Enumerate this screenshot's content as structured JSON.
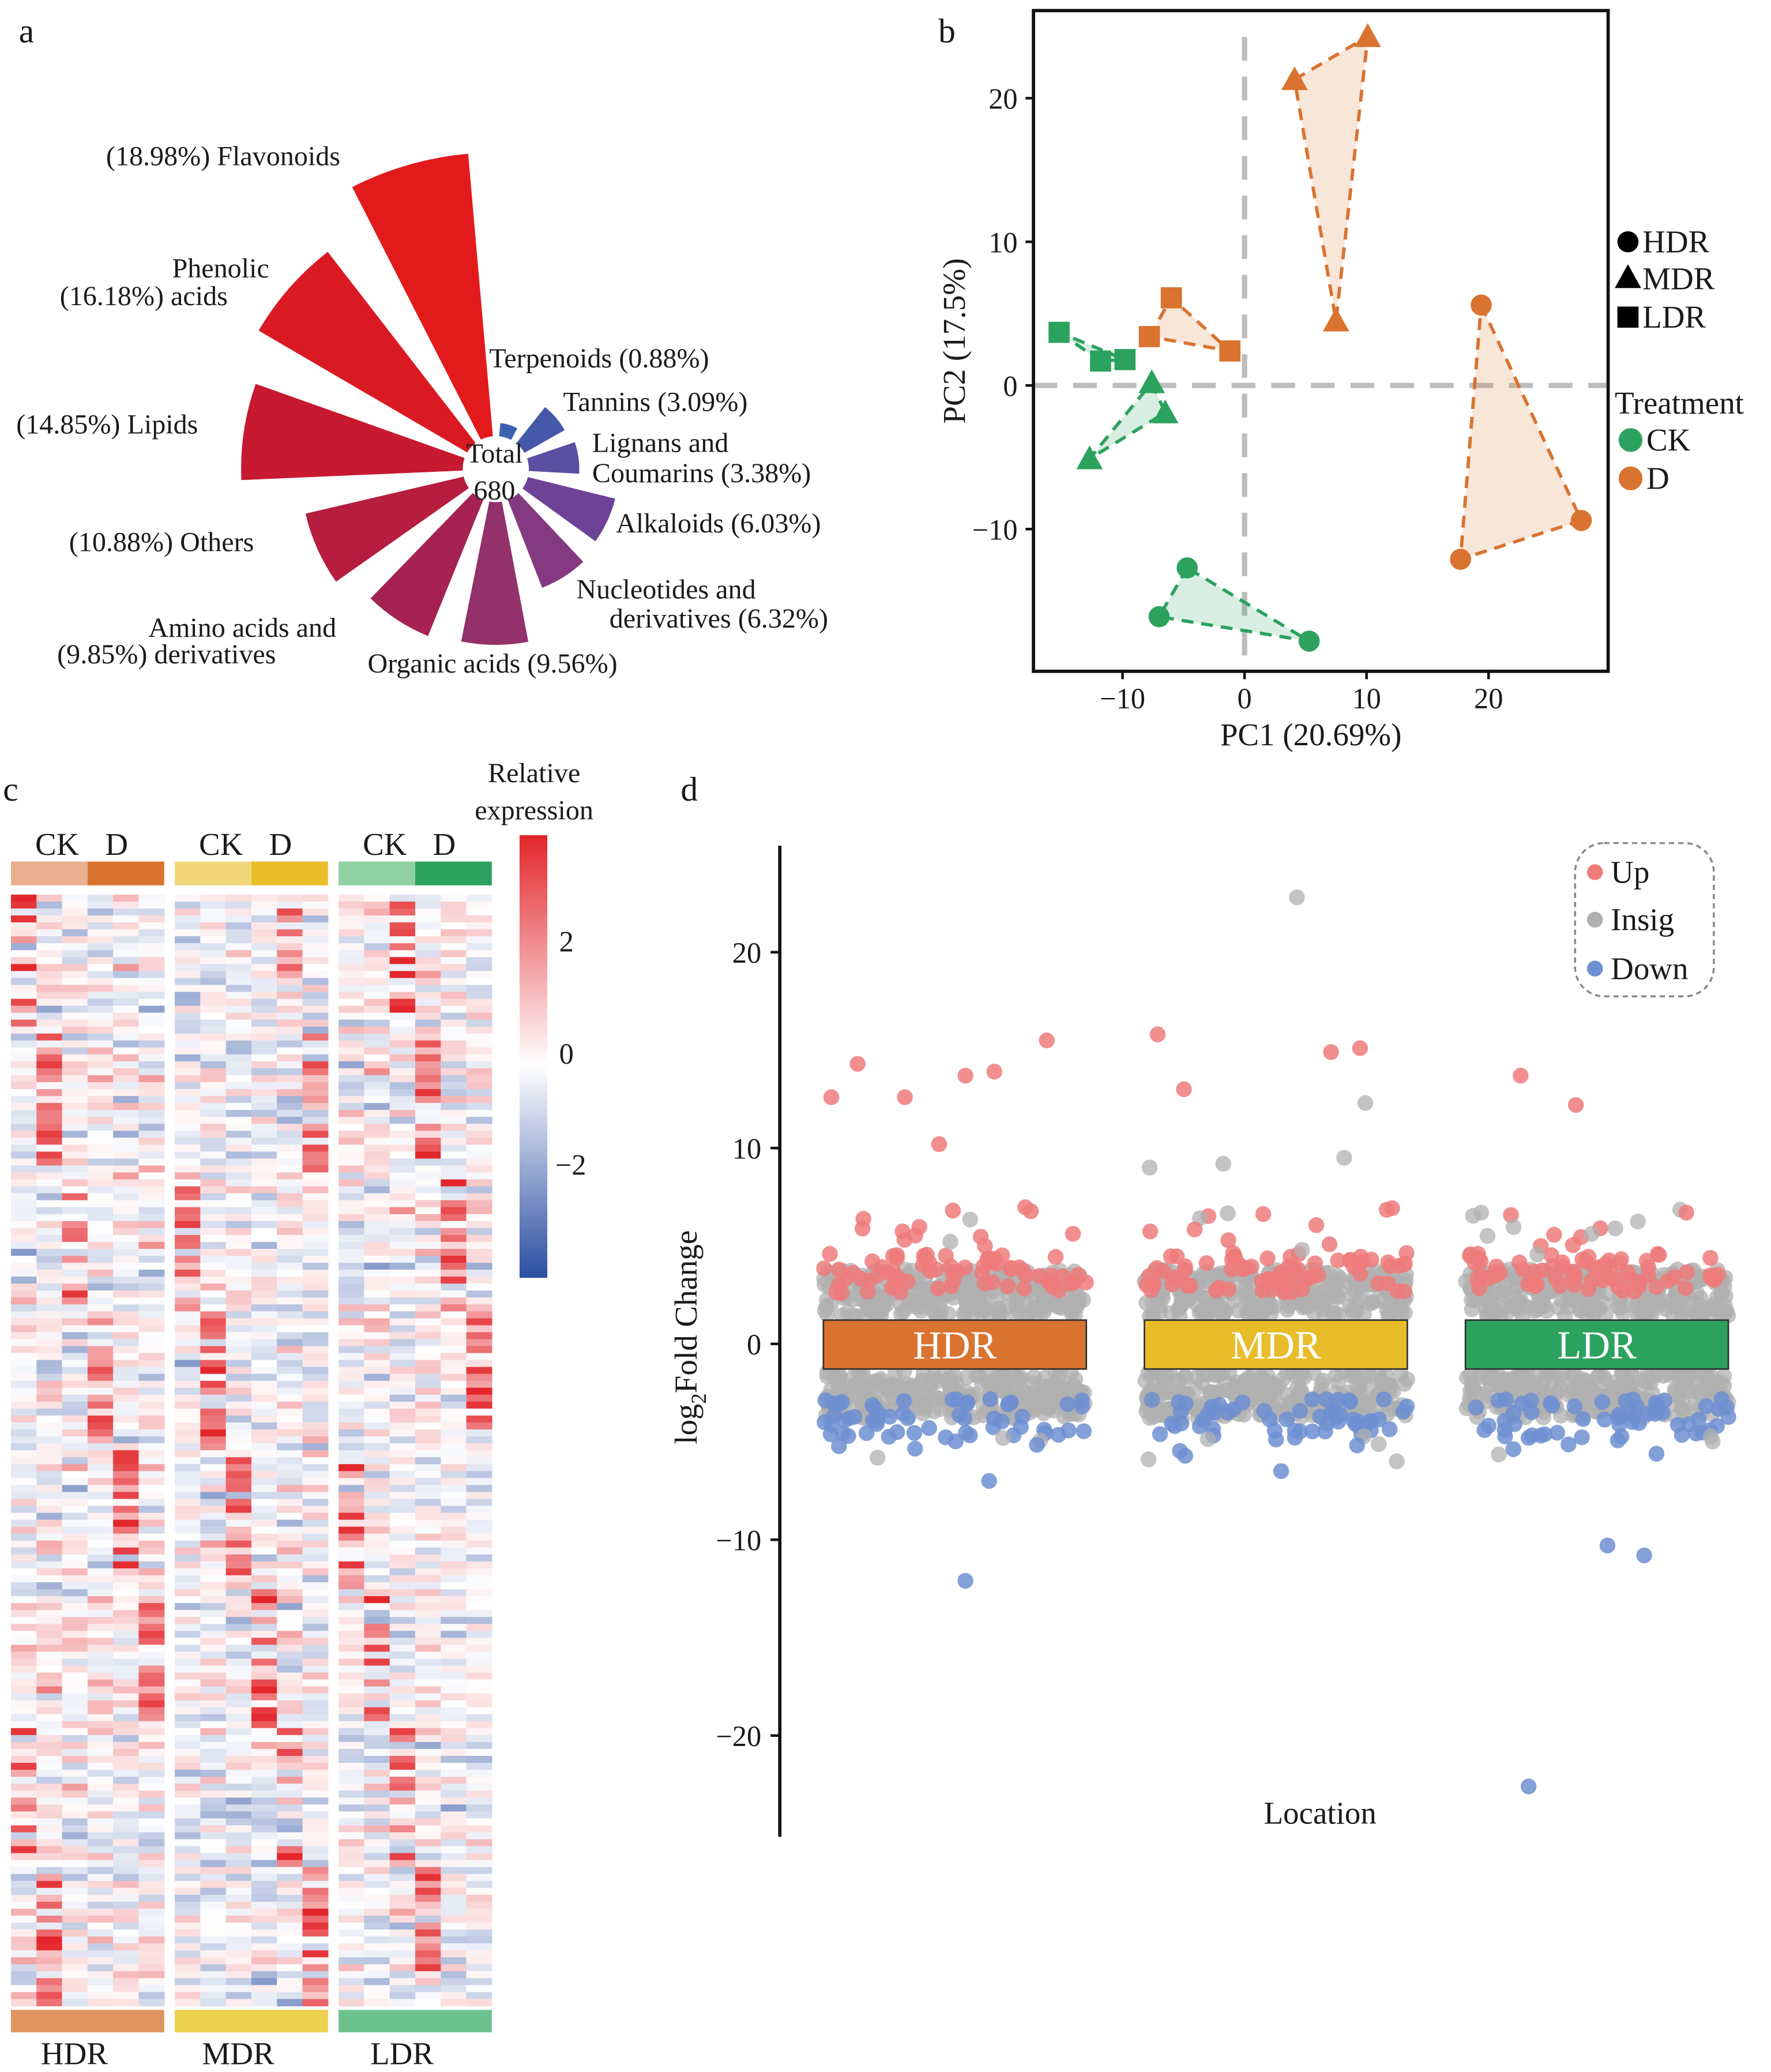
{
  "panel_labels": {
    "a": "a",
    "b": "b",
    "c": "c",
    "d": "d"
  },
  "chart_data": [
    {
      "type": "pie",
      "variant": "rose",
      "center_label": [
        "Total",
        "680"
      ],
      "categories": [
        "Flavonoids",
        "Terpenoids",
        "Tannins",
        "Lignans and Coumarins",
        "Alkaloids",
        "Nucleotides and derivatives",
        "Organic acids",
        "Amino acids and derivatives",
        "Others",
        "Lipids",
        "Phenolic acids"
      ],
      "values": [
        18.98,
        0.88,
        3.09,
        3.38,
        6.03,
        6.32,
        9.56,
        9.85,
        10.88,
        14.85,
        16.18
      ],
      "colors": [
        "#e31a1c",
        "#3b62b1",
        "#4659a9",
        "#5a4fa1",
        "#6e4297",
        "#843a80",
        "#93316a",
        "#a52252",
        "#b71d3e",
        "#c7192f",
        "#da1a22"
      ],
      "labels": [
        [
          "(18.98%)  Flavonoids"
        ],
        [
          "Terpenoids (0.88%)"
        ],
        [
          "Tannins  (3.09%)"
        ],
        [
          "Lignans and",
          "Coumarins (3.38%)"
        ],
        [
          "Alkaloids (6.03%)"
        ],
        [
          "Nucleotides and",
          "derivatives  (6.32%)"
        ],
        [
          "Organic acids (9.56%)"
        ],
        [
          "Amino acids and",
          "(9.85%)    derivatives"
        ],
        [
          "(10.88%)  Others"
        ],
        [
          "(14.85%) Lipids"
        ],
        [
          "Phenolic",
          "(16.18%)  acids"
        ]
      ]
    },
    {
      "type": "scatter",
      "xlabel": "PC1 (20.69%)",
      "ylabel": "PC2 (17.5%)",
      "xticks": [
        -10,
        0,
        10,
        20
      ],
      "yticks": [
        -10,
        0,
        10,
        20
      ],
      "tick_labels_x": [
        "−10",
        "0",
        "10",
        "20"
      ],
      "tick_labels_y": [
        "−10",
        "0",
        "10",
        "20"
      ],
      "xlim": [
        -17.3,
        29.8
      ],
      "ylim": [
        -19.9,
        26.1
      ],
      "reference_lines": {
        "x": 0,
        "y": 0
      },
      "colors": {
        "CK": "#2ca25f",
        "D": "#d9732f"
      },
      "legend": {
        "shapes": [
          "HDR",
          "MDR",
          "LDR"
        ],
        "color_title": "Treatment",
        "colors": [
          "CK",
          "D"
        ]
      },
      "series": [
        {
          "treatment": "D",
          "location": "MDR",
          "shape": "triangle",
          "points": [
            [
              4.1,
              21.3
            ],
            [
              10.1,
              24.3
            ],
            [
              7.5,
              4.5
            ]
          ]
        },
        {
          "treatment": "D",
          "location": "LDR",
          "shape": "square",
          "points": [
            [
              -7.8,
              3.4
            ],
            [
              -6.0,
              6.1
            ],
            [
              -1.2,
              2.4
            ]
          ]
        },
        {
          "treatment": "D",
          "location": "HDR",
          "shape": "circle",
          "points": [
            [
              19.4,
              5.6
            ],
            [
              27.6,
              -9.4
            ],
            [
              17.7,
              -12.1
            ]
          ]
        },
        {
          "treatment": "CK",
          "location": "LDR",
          "shape": "square",
          "points": [
            [
              -15.2,
              3.7
            ],
            [
              -11.8,
              1.7
            ],
            [
              -9.8,
              1.8
            ]
          ]
        },
        {
          "treatment": "CK",
          "location": "MDR",
          "shape": "triangle",
          "points": [
            [
              -7.6,
              0.2
            ],
            [
              -6.5,
              -1.9
            ],
            [
              -12.7,
              -5.1
            ]
          ]
        },
        {
          "treatment": "CK",
          "location": "HDR",
          "shape": "circle",
          "points": [
            [
              -4.7,
              -12.7
            ],
            [
              -7.0,
              -16.1
            ],
            [
              5.3,
              -17.8
            ]
          ]
        }
      ]
    },
    {
      "type": "heatmap",
      "colorbar_title": [
        "Relative",
        "expression"
      ],
      "colorbar_ticks": [
        2,
        0,
        -2
      ],
      "colorbar_tick_labels": [
        "2",
        "0",
        "−2"
      ],
      "color_range": [
        -3.2,
        3.5
      ],
      "colors": {
        "low": "#2b4ea2",
        "mid": "#ffffff",
        "high": "#e3262b"
      },
      "groups": [
        {
          "name": "HDR",
          "subgroups": [
            "CK",
            "D"
          ],
          "colors": [
            "#e9b08f",
            "#d9732f"
          ],
          "bar_color": "#df9560"
        },
        {
          "name": "MDR",
          "subgroups": [
            "CK",
            "D"
          ],
          "colors": [
            "#f1d67a",
            "#e9bd2a"
          ],
          "bar_color": "#ecd04f"
        },
        {
          "name": "LDR",
          "subgroups": [
            "CK",
            "D"
          ],
          "colors": [
            "#8fd0a4",
            "#2ca25f"
          ],
          "bar_color": "#6cc28e"
        }
      ],
      "samples_per_subgroup": 3
    },
    {
      "type": "scatter",
      "xlabel": "Location",
      "ylabel_main": "log",
      "ylabel_sub": "2",
      "ylabel_rest": "Fold Change",
      "yticks": [
        20,
        10,
        0,
        -10,
        -20
      ],
      "tick_labels_y": [
        "20",
        "10",
        "0",
        "−10",
        "−20"
      ],
      "ylim": [
        -25,
        25
      ],
      "legend": [
        "Up",
        "Insig",
        "Down"
      ],
      "legend_colors": [
        "#ef7b7b",
        "#b0b0b0",
        "#6f8fd2"
      ],
      "groups": [
        {
          "name": "HDR",
          "color": "#d9732f",
          "outliers": [
            {
              "x": 0.03,
              "y": 12.6,
              "class": "Up"
            },
            {
              "x": 0.13,
              "y": 14.3,
              "class": "Up"
            },
            {
              "x": 0.31,
              "y": 12.6,
              "class": "Up"
            },
            {
              "x": 0.44,
              "y": 10.2,
              "class": "Up"
            },
            {
              "x": 0.54,
              "y": 13.7,
              "class": "Up"
            },
            {
              "x": 0.65,
              "y": 13.9,
              "class": "Up"
            },
            {
              "x": 0.85,
              "y": 15.5,
              "class": "Up"
            },
            {
              "x": 0.54,
              "y": -12.1,
              "class": "Down"
            },
            {
              "x": 0.63,
              "y": -7.0,
              "class": "Down"
            }
          ]
        },
        {
          "name": "MDR",
          "color": "#e9bd2a",
          "outliers": [
            {
              "x": 0.05,
              "y": 15.8,
              "class": "Up"
            },
            {
              "x": 0.15,
              "y": 13.0,
              "class": "Up"
            },
            {
              "x": 0.71,
              "y": 14.9,
              "class": "Up"
            },
            {
              "x": 0.82,
              "y": 15.1,
              "class": "Up"
            },
            {
              "x": 0.58,
              "y": 22.8,
              "class": "Insig"
            },
            {
              "x": 0.02,
              "y": 9.0,
              "class": "Insig"
            },
            {
              "x": 0.3,
              "y": 9.2,
              "class": "Insig"
            },
            {
              "x": 0.76,
              "y": 9.5,
              "class": "Insig"
            },
            {
              "x": 0.84,
              "y": 12.3,
              "class": "Insig"
            },
            {
              "x": 0.52,
              "y": -6.5,
              "class": "Down"
            },
            {
              "x": 0.96,
              "y": -6.0,
              "class": "Insig"
            }
          ]
        },
        {
          "name": "LDR",
          "color": "#2ca25f",
          "outliers": [
            {
              "x": 0.21,
              "y": 13.7,
              "class": "Up"
            },
            {
              "x": 0.42,
              "y": 12.2,
              "class": "Up"
            },
            {
              "x": 0.06,
              "y": 6.7,
              "class": "Insig"
            },
            {
              "x": 0.57,
              "y": 5.9,
              "class": "Insig"
            },
            {
              "x": 0.84,
              "y": 6.7,
              "class": "Up"
            },
            {
              "x": 0.24,
              "y": -22.6,
              "class": "Down"
            },
            {
              "x": 0.54,
              "y": -10.3,
              "class": "Down"
            },
            {
              "x": 0.68,
              "y": -10.8,
              "class": "Down"
            },
            {
              "x": 0.24,
              "y": -4.8,
              "class": "Down"
            }
          ]
        }
      ]
    }
  ]
}
